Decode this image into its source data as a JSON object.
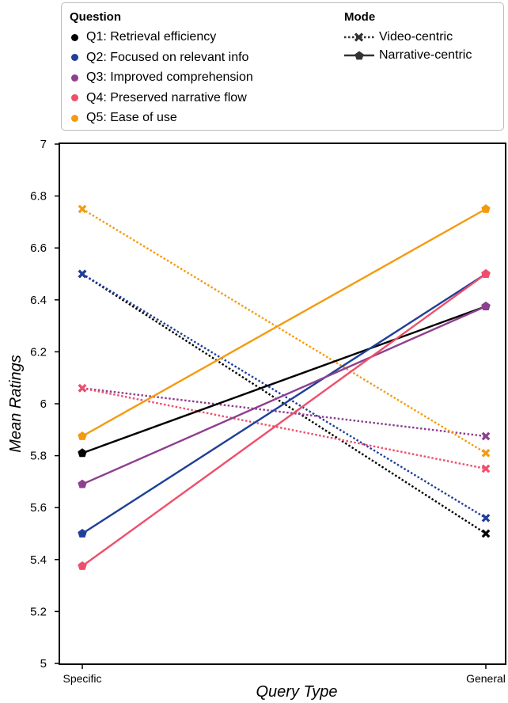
{
  "chart_data": {
    "type": "line",
    "xlabel": "Query Type",
    "ylabel": "Mean Ratings",
    "categories": [
      "Specific",
      "General"
    ],
    "ylim": [
      5,
      7
    ],
    "yticks": [
      "5",
      "5.2",
      "5.4",
      "5.6",
      "5.8",
      "6",
      "6.2",
      "6.4",
      "6.6",
      "6.8",
      "7"
    ],
    "grid": false,
    "legend": {
      "placement": "top",
      "question_title": "Question",
      "mode_title": "Mode",
      "questions": [
        {
          "label": "Q1: Retrieval efficiency",
          "color": "#000000"
        },
        {
          "label": "Q2: Focused on relevant info",
          "color": "#1f3f99"
        },
        {
          "label": "Q3: Improved comprehension",
          "color": "#8e3f8e"
        },
        {
          "label": "Q4: Preserved narrative flow",
          "color": "#ef4f6b"
        },
        {
          "label": "Q5: Ease of use",
          "color": "#f59a0f"
        }
      ],
      "modes": [
        {
          "label": "Video-centric",
          "style": "dotted",
          "marker": "x"
        },
        {
          "label": "Narrative-centric",
          "style": "solid",
          "marker": "pentagon"
        }
      ]
    },
    "series": [
      {
        "question": 0,
        "mode": 0,
        "values": [
          6.5,
          5.5
        ]
      },
      {
        "question": 1,
        "mode": 0,
        "values": [
          6.5,
          5.56
        ]
      },
      {
        "question": 2,
        "mode": 0,
        "values": [
          6.06,
          5.875
        ]
      },
      {
        "question": 3,
        "mode": 0,
        "values": [
          6.06,
          5.75
        ]
      },
      {
        "question": 4,
        "mode": 0,
        "values": [
          6.75,
          5.81
        ]
      },
      {
        "question": 0,
        "mode": 1,
        "values": [
          5.81,
          6.375
        ]
      },
      {
        "question": 1,
        "mode": 1,
        "values": [
          5.5,
          6.5
        ]
      },
      {
        "question": 2,
        "mode": 1,
        "values": [
          5.69,
          6.375
        ]
      },
      {
        "question": 3,
        "mode": 1,
        "values": [
          5.375,
          6.5
        ]
      },
      {
        "question": 4,
        "mode": 1,
        "values": [
          5.875,
          6.75
        ]
      }
    ]
  }
}
